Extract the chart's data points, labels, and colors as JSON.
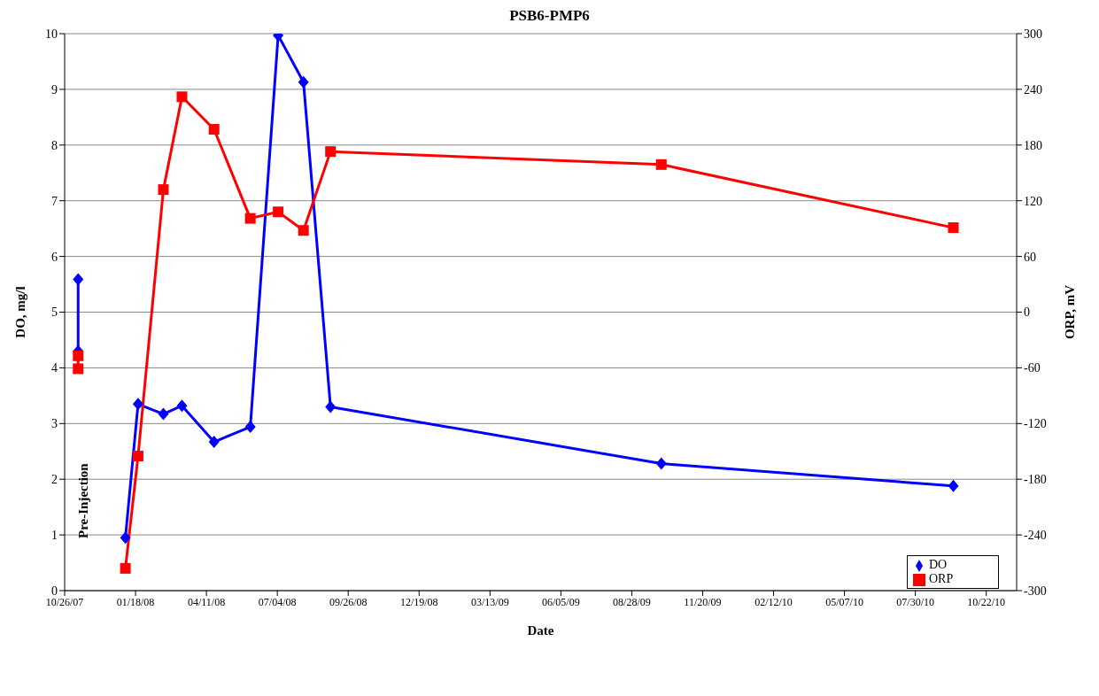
{
  "chart_data": {
    "type": "line",
    "title": "PSB6-PMP6",
    "xlabel": "Date",
    "ylabel": "DO, mg/l",
    "y2label": "ORP, mV",
    "series": [
      {
        "name": "DO",
        "color": "#0000ff",
        "marker": "diamond",
        "x": [
          "2008-01-06",
          "2008-01-21",
          "2008-02-20",
          "2008-03-13",
          "2008-04-20",
          "2008-06-02",
          "2008-07-05",
          "2008-08-04",
          "2008-09-05",
          "2009-10-02",
          "2010-09-13"
        ],
        "values": [
          0.95,
          3.35,
          3.17,
          3.32,
          2.67,
          2.94,
          9.97,
          9.13,
          3.3,
          2.28,
          1.88
        ]
      },
      {
        "name": "ORP",
        "color": "#ff0000",
        "marker": "square",
        "axis": "y2",
        "x": [
          "2008-01-06",
          "2008-01-21",
          "2008-02-20",
          "2008-03-13",
          "2008-04-20",
          "2008-06-02",
          "2008-07-05",
          "2008-08-04",
          "2008-09-05",
          "2009-10-02",
          "2010-09-13"
        ],
        "values": [
          -276,
          -155,
          132,
          232,
          197,
          101,
          108,
          88,
          173,
          159,
          91
        ]
      },
      {
        "color": "#0000ff",
        "marker": "diamond",
        "x": [
          "2007-11-11",
          "2007-11-11"
        ],
        "values": [
          5.59,
          4.3
        ]
      },
      {
        "color": "#ff0000",
        "marker": "square",
        "axis": "y2",
        "x": [
          "2007-11-11",
          "2007-11-11"
        ],
        "values": [
          -47,
          -61
        ]
      }
    ],
    "xlim": [
      "2007-10-26",
      "2010-11-27"
    ],
    "xticks": [
      {
        "value": "2007-10-26",
        "label": "10/26/07"
      },
      {
        "value": "2008-01-18",
        "label": "01/18/08"
      },
      {
        "value": "2008-04-11",
        "label": "04/11/08"
      },
      {
        "value": "2008-07-04",
        "label": "07/04/08"
      },
      {
        "value": "2008-09-26",
        "label": "09/26/08"
      },
      {
        "value": "2008-12-19",
        "label": "12/19/08"
      },
      {
        "value": "2009-03-13",
        "label": "03/13/09"
      },
      {
        "value": "2009-06-05",
        "label": "06/05/09"
      },
      {
        "value": "2009-08-28",
        "label": "08/28/09"
      },
      {
        "value": "2009-11-20",
        "label": "11/20/09"
      },
      {
        "value": "2010-02-12",
        "label": "02/12/10"
      },
      {
        "value": "2010-05-07",
        "label": "05/07/10"
      },
      {
        "value": "2010-07-30",
        "label": "07/30/10"
      },
      {
        "value": "2010-10-22",
        "label": "10/22/10"
      }
    ],
    "ylim": [
      0,
      10
    ],
    "yticks": [
      0,
      1,
      2,
      3,
      4,
      5,
      6,
      7,
      8,
      9,
      10
    ],
    "y2lim": [
      -300,
      300
    ],
    "y2ticks": [
      -300,
      -240,
      -180,
      -120,
      -60,
      0,
      60,
      120,
      180,
      240,
      300
    ],
    "annotations": [
      "Pre-Injection"
    ],
    "grid": "y",
    "legend": "bottom right",
    "line_style": "solid"
  }
}
